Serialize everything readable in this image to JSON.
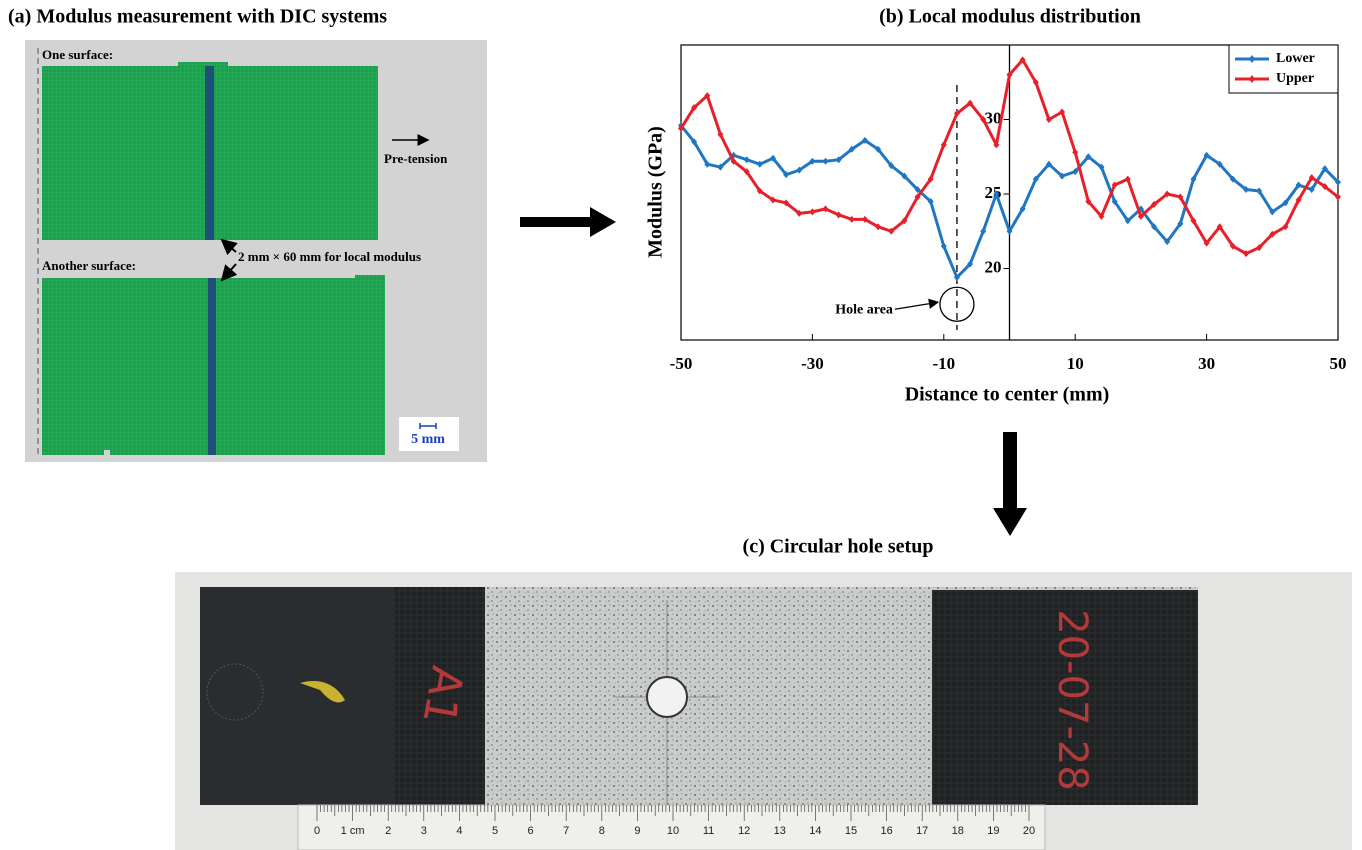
{
  "panel_a": {
    "title": "(a) Modulus measurement with DIC systems",
    "surface_1": "One surface:",
    "surface_2": "Another surface:",
    "pre_tension": "Pre-tension",
    "strip_note": "2 mm × 60 mm for local modulus",
    "scale_bar": "5 mm"
  },
  "chart_data": {
    "type": "line",
    "title": "(b) Local modulus distribution",
    "x_label": "Distance to center (mm)",
    "y_label": "Modulus (GPa)",
    "x": [
      -50,
      -48,
      -46,
      -44,
      -42,
      -40,
      -38,
      -36,
      -34,
      -32,
      -30,
      -28,
      -26,
      -24,
      -22,
      -20,
      -18,
      -16,
      -14,
      -12,
      -10,
      -8,
      -6,
      -4,
      -2,
      0,
      2,
      4,
      6,
      8,
      10,
      12,
      14,
      16,
      18,
      20,
      22,
      24,
      26,
      28,
      30,
      32,
      34,
      36,
      38,
      40,
      42,
      44,
      46,
      48,
      50
    ],
    "series": [
      {
        "name": "Lower",
        "color": "#1f77c4",
        "values": [
          29.6,
          28.5,
          27.0,
          26.8,
          27.6,
          27.3,
          27.0,
          27.4,
          26.3,
          26.6,
          27.2,
          27.2,
          27.3,
          28.0,
          28.6,
          28.0,
          26.9,
          26.2,
          25.3,
          24.5,
          21.5,
          19.4,
          20.3,
          22.5,
          25.0,
          22.5,
          24.0,
          26.0,
          27.0,
          26.2,
          26.5,
          27.5,
          26.8,
          24.5,
          23.2,
          24.0,
          22.8,
          21.8,
          23.0,
          26.0,
          27.6,
          27.0,
          26.0,
          25.3,
          25.2,
          23.8,
          24.4,
          25.6,
          25.3,
          26.7,
          25.8
        ]
      },
      {
        "name": "Upper",
        "color": "#e8202a",
        "values": [
          29.4,
          30.8,
          31.6,
          29.0,
          27.2,
          26.5,
          25.2,
          24.6,
          24.4,
          23.7,
          23.8,
          24.0,
          23.6,
          23.3,
          23.3,
          22.8,
          22.5,
          23.2,
          24.8,
          26.0,
          28.3,
          30.4,
          31.1,
          30.0,
          28.3,
          33.0,
          34.0,
          32.5,
          30.0,
          30.5,
          27.8,
          24.5,
          23.5,
          25.6,
          26.0,
          23.5,
          24.3,
          25.0,
          24.8,
          23.2,
          21.7,
          22.8,
          21.5,
          21.0,
          21.4,
          22.3,
          22.8,
          24.6,
          26.1,
          25.5,
          24.8
        ]
      }
    ],
    "xlim": [
      -50,
      50
    ],
    "xticks": [
      -50,
      -30,
      -10,
      10,
      30,
      50
    ],
    "ylim": [
      15.2,
      35
    ],
    "yticks": [
      20,
      25,
      30
    ],
    "legend": "top-right",
    "reference_lines": [
      {
        "x": -8,
        "style": "dashed"
      },
      {
        "x": 0,
        "style": "solid"
      }
    ],
    "annotation": {
      "text": "Hole area",
      "x": -8,
      "y": 17.6
    }
  },
  "panel_c": {
    "title": "(c) Circular hole setup",
    "tab_marks": [
      "A1",
      "20-07-28"
    ],
    "ruler_labels": [
      "0",
      "1 cm",
      "2",
      "3",
      "4",
      "5",
      "6",
      "7",
      "8",
      "9",
      "10",
      "11",
      "12",
      "13",
      "14",
      "15",
      "16",
      "17",
      "18",
      "19",
      "20"
    ]
  }
}
